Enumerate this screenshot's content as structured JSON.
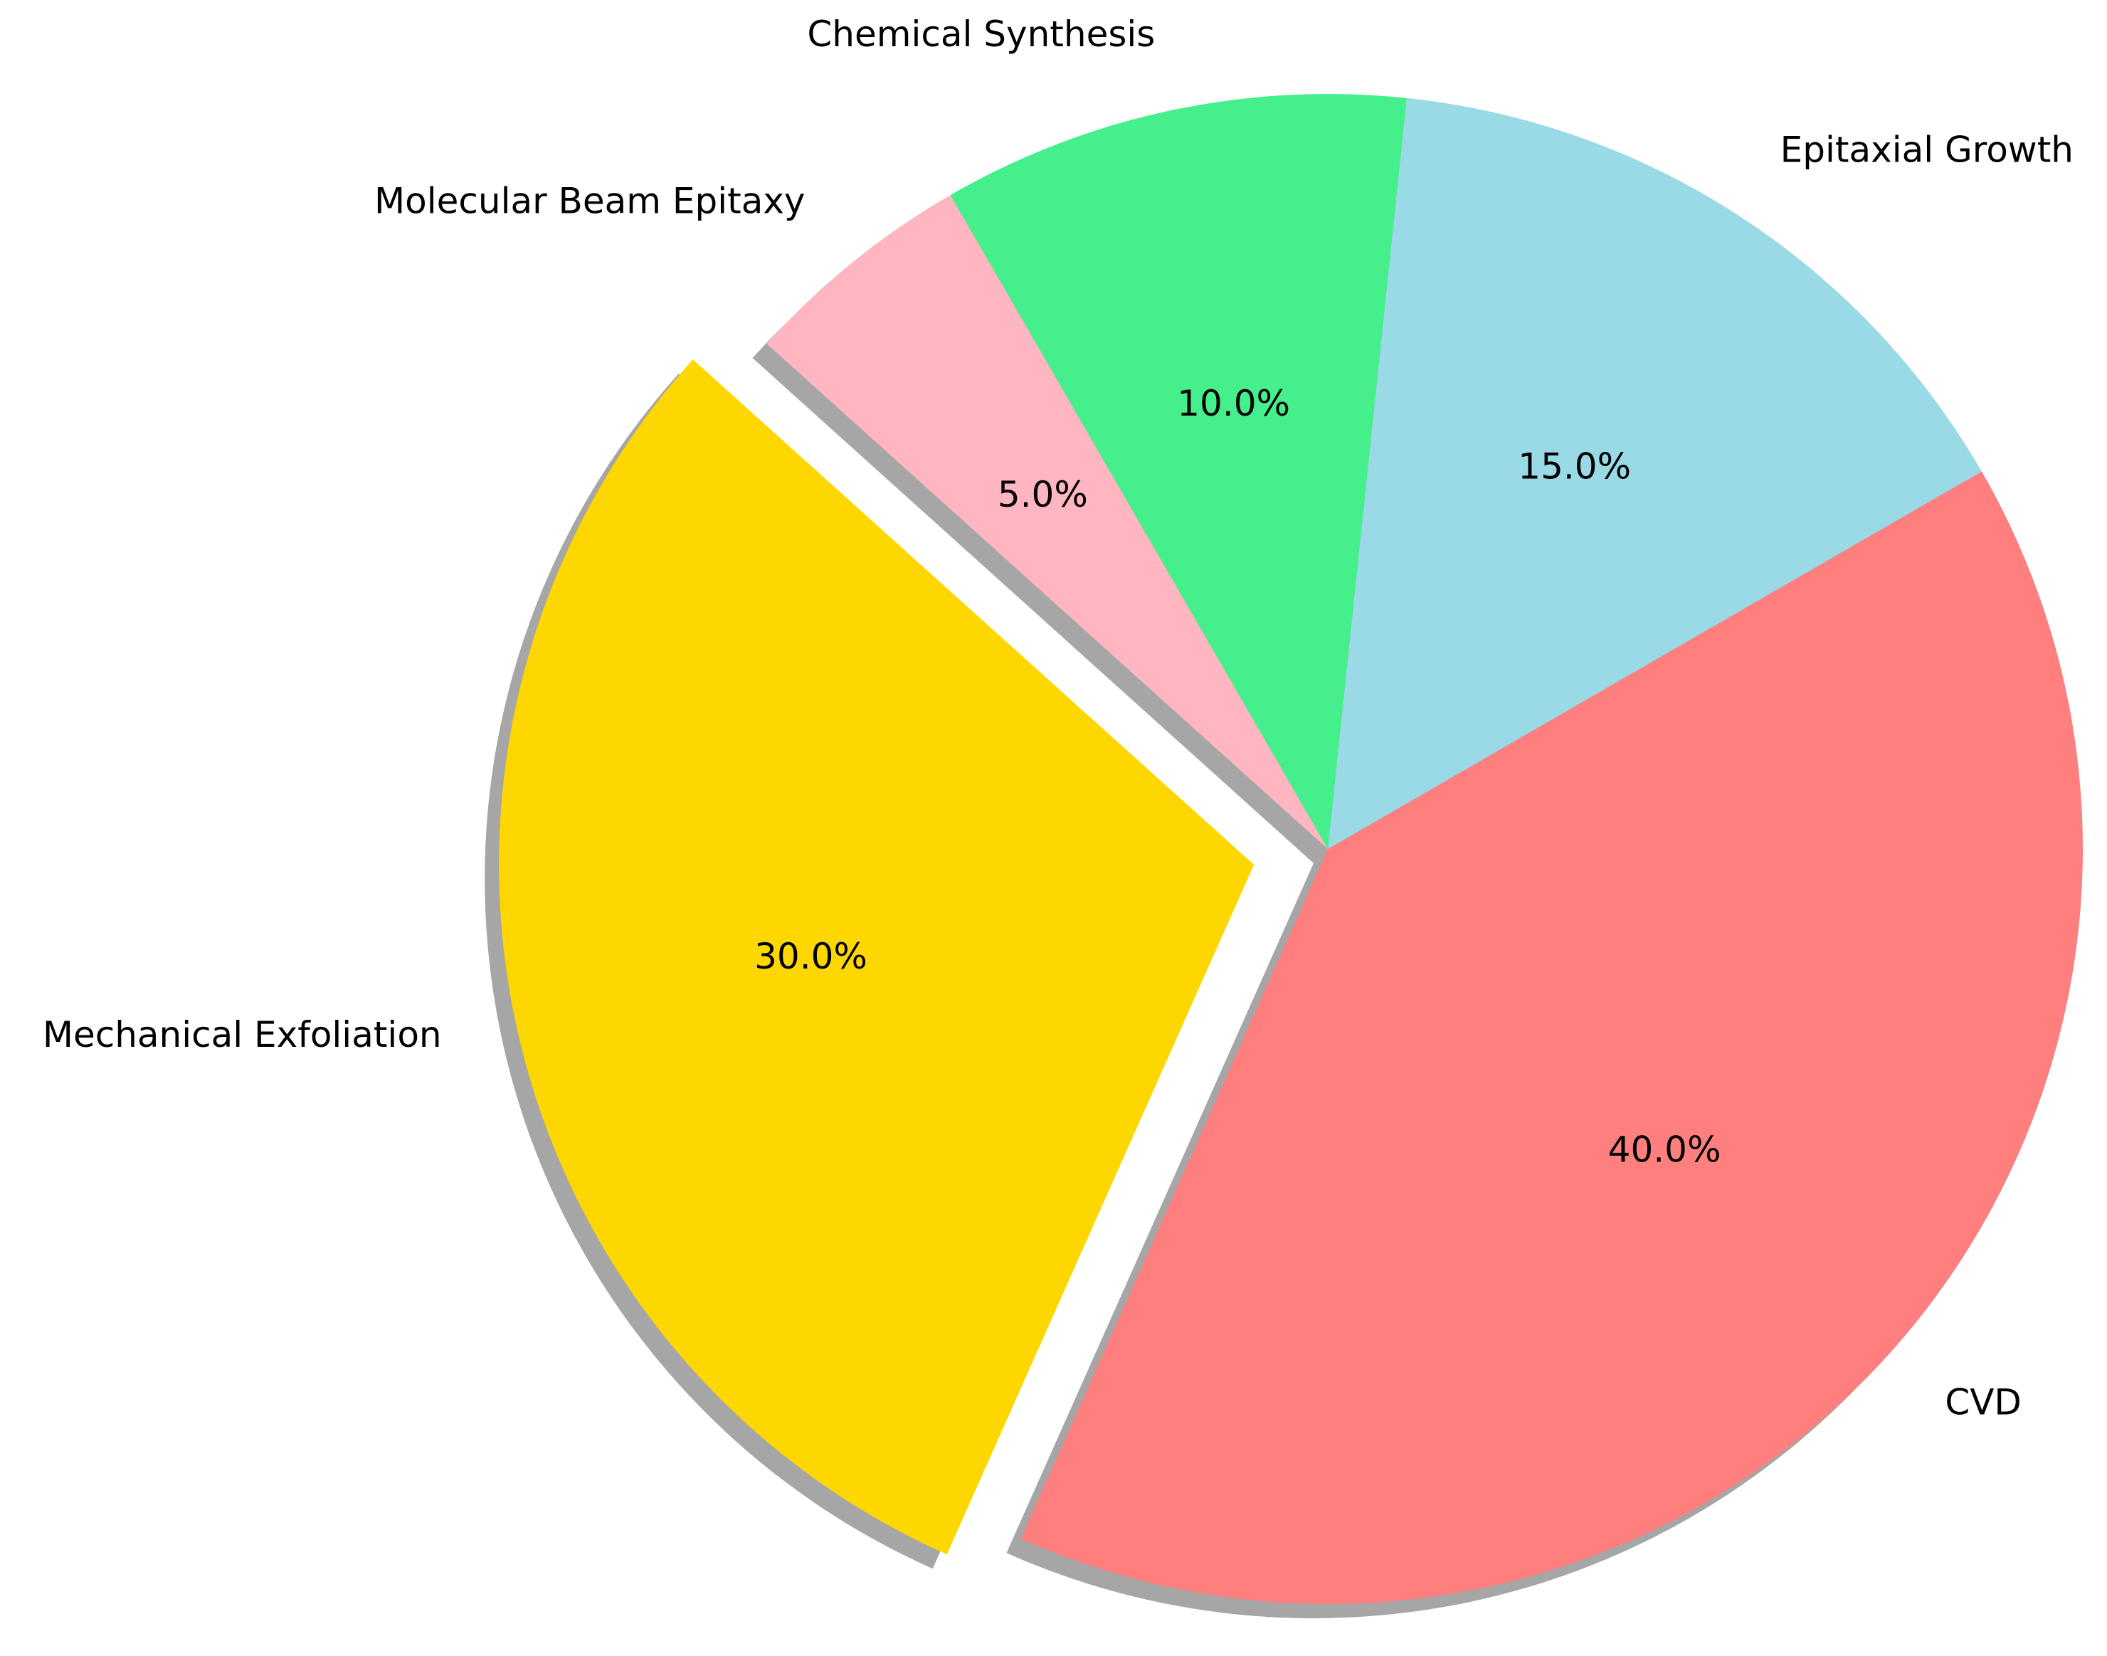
{
  "chart_data": {
    "type": "pie",
    "categories": [
      "CVD",
      "Epitaxial Growth",
      "Chemical Synthesis",
      "Molecular Beam Epitaxy",
      "Mechanical Exfoliation"
    ],
    "values": [
      40,
      15,
      10,
      5,
      30
    ],
    "value_labels": [
      "40.0%",
      "15.0%",
      "10.0%",
      "5.0%",
      "30.0%"
    ],
    "colors": [
      "#ff7f7f",
      "#99dae6",
      "#45ef8c",
      "#ffb6c1",
      "#ffd700"
    ],
    "explode": [
      0,
      0,
      0,
      0,
      0.1
    ],
    "shadow": true
  }
}
